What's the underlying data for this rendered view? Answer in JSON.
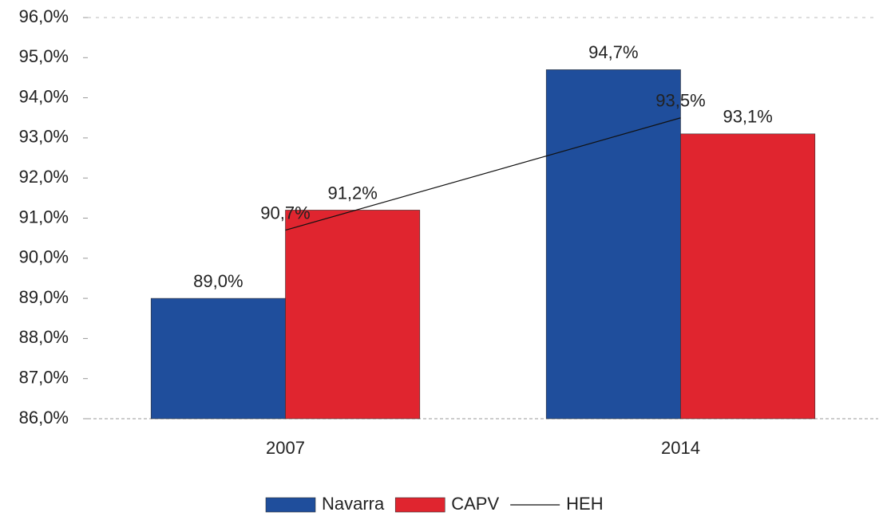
{
  "chart_data": {
    "type": "bar",
    "categories": [
      "2007",
      "2014"
    ],
    "series": [
      {
        "name": "Navarra",
        "color": "#1f4e9c",
        "values": [
          89.0,
          94.7
        ],
        "value_labels": [
          "89,0%",
          "94,7%"
        ]
      },
      {
        "name": "CAPV",
        "color": "#e0252f",
        "values": [
          91.2,
          93.1
        ],
        "value_labels": [
          "91,2%",
          "93,1%"
        ]
      },
      {
        "name": "HEH",
        "type": "line",
        "color": "#111111",
        "values": [
          90.7,
          93.5
        ],
        "value_labels": [
          "90,7%",
          "93,5%"
        ]
      }
    ],
    "ylim": [
      86,
      96
    ],
    "yticks": [
      {
        "value": 86,
        "label": "86,0%"
      },
      {
        "value": 87,
        "label": "87,0%"
      },
      {
        "value": 88,
        "label": "88,0%"
      },
      {
        "value": 89,
        "label": "89,0%"
      },
      {
        "value": 90,
        "label": "90,0%"
      },
      {
        "value": 91,
        "label": "91,0%"
      },
      {
        "value": 92,
        "label": "92,0%"
      },
      {
        "value": 93,
        "label": "93,0%"
      },
      {
        "value": 94,
        "label": "94,0%"
      },
      {
        "value": 95,
        "label": "95,0%"
      },
      {
        "value": 96,
        "label": "96,0%"
      }
    ],
    "grid": false,
    "legend": "bottom"
  }
}
